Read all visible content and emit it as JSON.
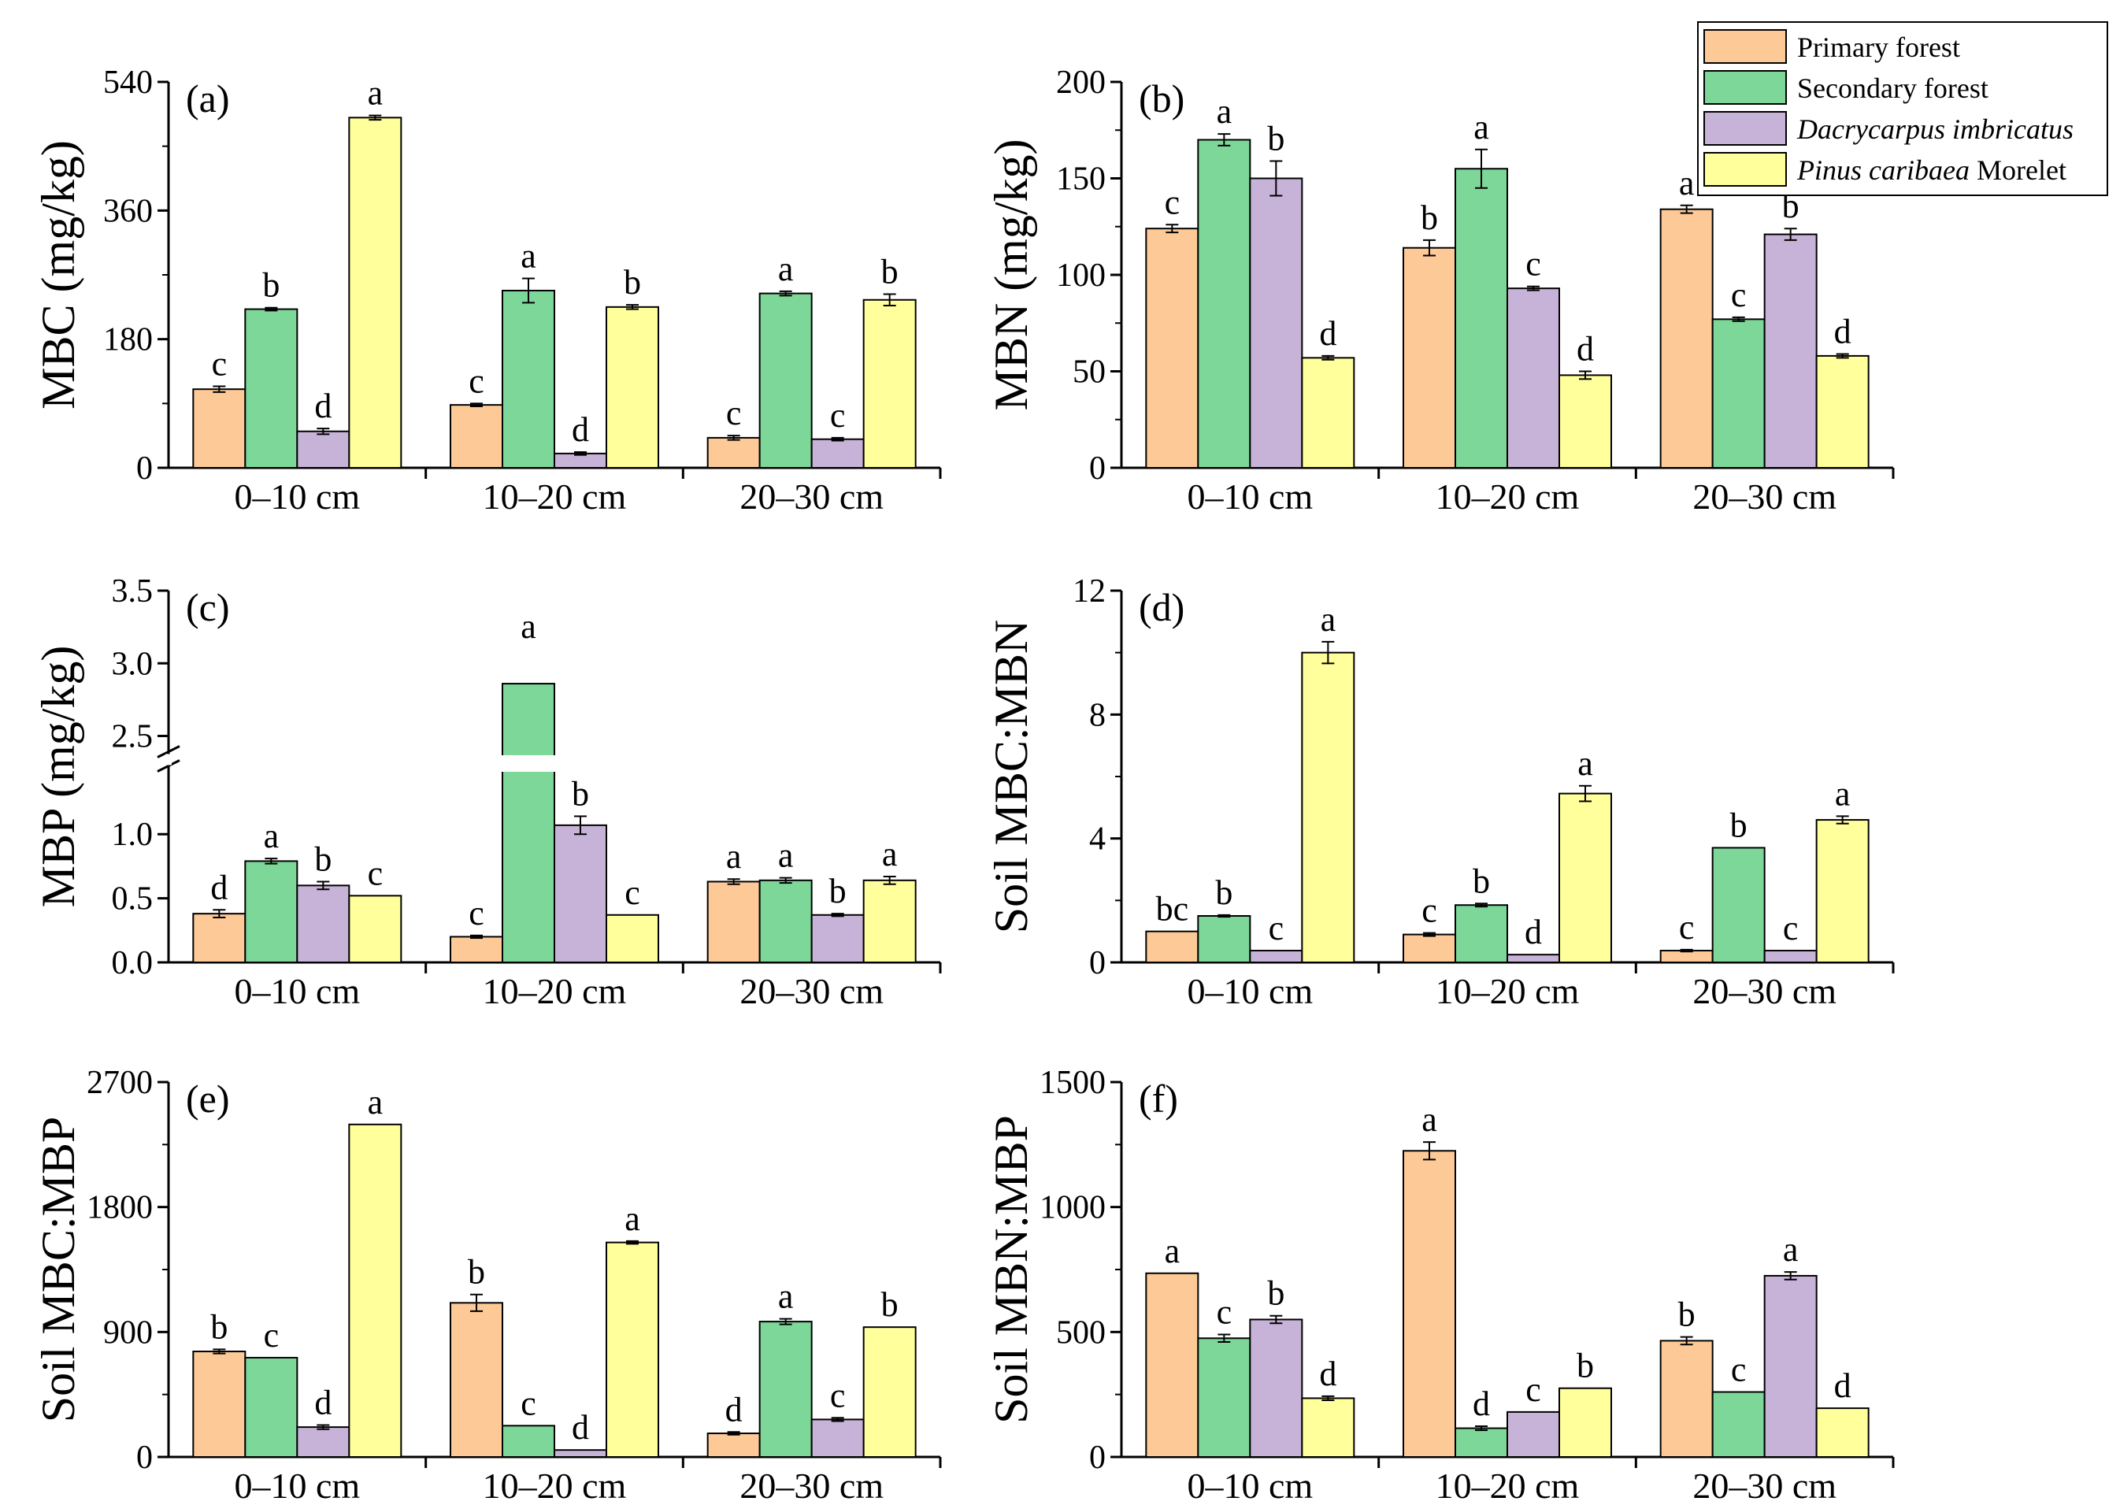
{
  "figure": {
    "legend": {
      "items": [
        {
          "parts": [
            {
              "text": "Primary forest",
              "italic": false
            }
          ],
          "color": "#FDC997"
        },
        {
          "parts": [
            {
              "text": "Secondary forest",
              "italic": false
            }
          ],
          "color": "#7DD799"
        },
        {
          "parts": [
            {
              "text": "Dacrycarpus imbricatus",
              "italic": true
            }
          ],
          "color": "#C8B3D8"
        },
        {
          "parts": [
            {
              "text": "Pinus caribaea",
              "italic": true
            },
            {
              "text": " Morelet",
              "italic": false
            }
          ],
          "color": "#FFFF9B"
        }
      ]
    }
  },
  "chart_data": [
    {
      "panel": "(a)",
      "type": "bar",
      "ylabel": "MBC (mg/kg)",
      "ylim": [
        0,
        540
      ],
      "yticks": [
        "0",
        "180",
        "360",
        "540"
      ],
      "categories": [
        "0–10 cm",
        "10–20 cm",
        "20–30 cm"
      ],
      "series": [
        {
          "name": "Primary forest",
          "values": [
            110,
            88,
            42
          ],
          "errors": [
            4,
            2,
            3
          ],
          "labels": [
            "c",
            "c",
            "c"
          ]
        },
        {
          "name": "Secondary forest",
          "values": [
            222,
            248,
            244
          ],
          "errors": [
            2,
            17,
            3
          ],
          "labels": [
            "b",
            "a",
            "a"
          ]
        },
        {
          "name": "Dacrycarpus imbricatus",
          "values": [
            51,
            20,
            40
          ],
          "errors": [
            4,
            2,
            2
          ],
          "labels": [
            "d",
            "d",
            "c"
          ]
        },
        {
          "name": "Pinus caribaea Morelet",
          "values": [
            490,
            225,
            235
          ],
          "errors": [
            3,
            3,
            8
          ],
          "labels": [
            "a",
            "b",
            "b"
          ]
        }
      ]
    },
    {
      "panel": "(b)",
      "type": "bar",
      "ylabel": "MBN (mg/kg)",
      "ylim": [
        0,
        200
      ],
      "yticks": [
        "0",
        "50",
        "100",
        "150",
        "200"
      ],
      "categories": [
        "0–10 cm",
        "10–20 cm",
        "20–30 cm"
      ],
      "series": [
        {
          "name": "Primary forest",
          "values": [
            124,
            114,
            134
          ],
          "errors": [
            2,
            4,
            2
          ],
          "labels": [
            "c",
            "b",
            "a"
          ]
        },
        {
          "name": "Secondary forest",
          "values": [
            170,
            155,
            77
          ],
          "errors": [
            3,
            10,
            1
          ],
          "labels": [
            "a",
            "a",
            "c"
          ]
        },
        {
          "name": "Dacrycarpus imbricatus",
          "values": [
            150,
            93,
            121
          ],
          "errors": [
            9,
            1,
            3
          ],
          "labels": [
            "b",
            "c",
            "b"
          ]
        },
        {
          "name": "Pinus caribaea Morelet",
          "values": [
            57,
            48,
            58
          ],
          "errors": [
            1,
            2,
            1
          ],
          "labels": [
            "d",
            "d",
            "d"
          ]
        }
      ]
    },
    {
      "panel": "(c)",
      "type": "bar",
      "ylabel": "MBP (mg/kg)",
      "ylim": [
        0,
        3.5
      ],
      "axis_break": [
        1.45,
        2.4
      ],
      "yticks": [
        "0.0",
        "0.5",
        "1.0",
        "2.5",
        "3.0",
        "3.5"
      ],
      "categories": [
        "0–10 cm",
        "10–20 cm",
        "20–30 cm"
      ],
      "series": [
        {
          "name": "Primary forest",
          "values": [
            0.38,
            0.2,
            0.63
          ],
          "errors": [
            0.03,
            0.01,
            0.02
          ],
          "labels": [
            "d",
            "c",
            "a"
          ]
        },
        {
          "name": "Secondary forest",
          "values": [
            0.79,
            2.86,
            0.64
          ],
          "errors": [
            0.02,
            0,
            0.02
          ],
          "labels": [
            "a",
            "a",
            "a"
          ]
        },
        {
          "name": "Dacrycarpus imbricatus",
          "values": [
            0.6,
            1.07,
            0.37
          ],
          "errors": [
            0.03,
            0.07,
            0.01
          ],
          "labels": [
            "b",
            "b",
            "b"
          ]
        },
        {
          "name": "Pinus caribaea Morelet",
          "values": [
            0.52,
            0.37,
            0.64
          ],
          "errors": [
            0,
            0,
            0.03
          ],
          "labels": [
            "c",
            "c",
            "a"
          ]
        }
      ]
    },
    {
      "panel": "(d)",
      "type": "bar",
      "ylabel": "Soil MBC:MBN",
      "ylim": [
        0,
        12
      ],
      "yticks": [
        "0",
        "4",
        "8",
        "12"
      ],
      "categories": [
        "0–10 cm",
        "10–20 cm",
        "20–30 cm"
      ],
      "series": [
        {
          "name": "Primary forest",
          "values": [
            1.0,
            0.9,
            0.38
          ],
          "errors": [
            0,
            0.05,
            0.03
          ],
          "labels": [
            "bc",
            "c",
            "c"
          ]
        },
        {
          "name": "Secondary forest",
          "values": [
            1.5,
            1.85,
            3.7
          ],
          "errors": [
            0.03,
            0.05,
            0
          ],
          "labels": [
            "b",
            "b",
            "b"
          ]
        },
        {
          "name": "Dacrycarpus imbricatus",
          "values": [
            0.38,
            0.25,
            0.38
          ],
          "errors": [
            0,
            0,
            0
          ],
          "labels": [
            "c",
            "d",
            "c"
          ]
        },
        {
          "name": "Pinus caribaea Morelet",
          "values": [
            10.0,
            5.45,
            4.6
          ],
          "errors": [
            0.35,
            0.25,
            0.12
          ],
          "labels": [
            "a",
            "a",
            "a"
          ]
        }
      ]
    },
    {
      "panel": "(e)",
      "type": "bar",
      "ylabel": "Soil MBC:MBP",
      "ylim": [
        0,
        2700
      ],
      "yticks": [
        "0",
        "900",
        "1800",
        "2700"
      ],
      "categories": [
        "0–10 cm",
        "10–20 cm",
        "20–30 cm"
      ],
      "series": [
        {
          "name": "Primary forest",
          "values": [
            760,
            1110,
            170
          ],
          "errors": [
            15,
            60,
            10
          ],
          "labels": [
            "b",
            "b",
            "d"
          ]
        },
        {
          "name": "Secondary forest",
          "values": [
            715,
            225,
            975
          ],
          "errors": [
            0,
            0,
            20
          ],
          "labels": [
            "c",
            "c",
            "a"
          ]
        },
        {
          "name": "Dacrycarpus imbricatus",
          "values": [
            215,
            50,
            270
          ],
          "errors": [
            15,
            0,
            12
          ],
          "labels": [
            "d",
            "d",
            "c"
          ]
        },
        {
          "name": "Pinus caribaea Morelet",
          "values": [
            2395,
            1545,
            935
          ],
          "errors": [
            0,
            10,
            0
          ],
          "labels": [
            "a",
            "a",
            "b"
          ]
        }
      ]
    },
    {
      "panel": "(f)",
      "type": "bar",
      "ylabel": "Soil MBN:MBP",
      "ylim": [
        0,
        1500
      ],
      "yticks": [
        "0",
        "500",
        "1000",
        "1500"
      ],
      "categories": [
        "0–10 cm",
        "10–20 cm",
        "20–30 cm"
      ],
      "series": [
        {
          "name": "Primary forest",
          "values": [
            735,
            1225,
            465
          ],
          "errors": [
            0,
            35,
            15
          ],
          "labels": [
            "a",
            "a",
            "b"
          ]
        },
        {
          "name": "Secondary forest",
          "values": [
            475,
            115,
            260
          ],
          "errors": [
            15,
            8,
            0
          ],
          "labels": [
            "c",
            "d",
            "c"
          ]
        },
        {
          "name": "Dacrycarpus imbricatus",
          "values": [
            550,
            180,
            725
          ],
          "errors": [
            15,
            0,
            15
          ],
          "labels": [
            "b",
            "c",
            "a"
          ]
        },
        {
          "name": "Pinus caribaea Morelet",
          "values": [
            235,
            275,
            195
          ],
          "errors": [
            8,
            0,
            0
          ],
          "labels": [
            "d",
            "b",
            "d"
          ]
        }
      ]
    }
  ]
}
